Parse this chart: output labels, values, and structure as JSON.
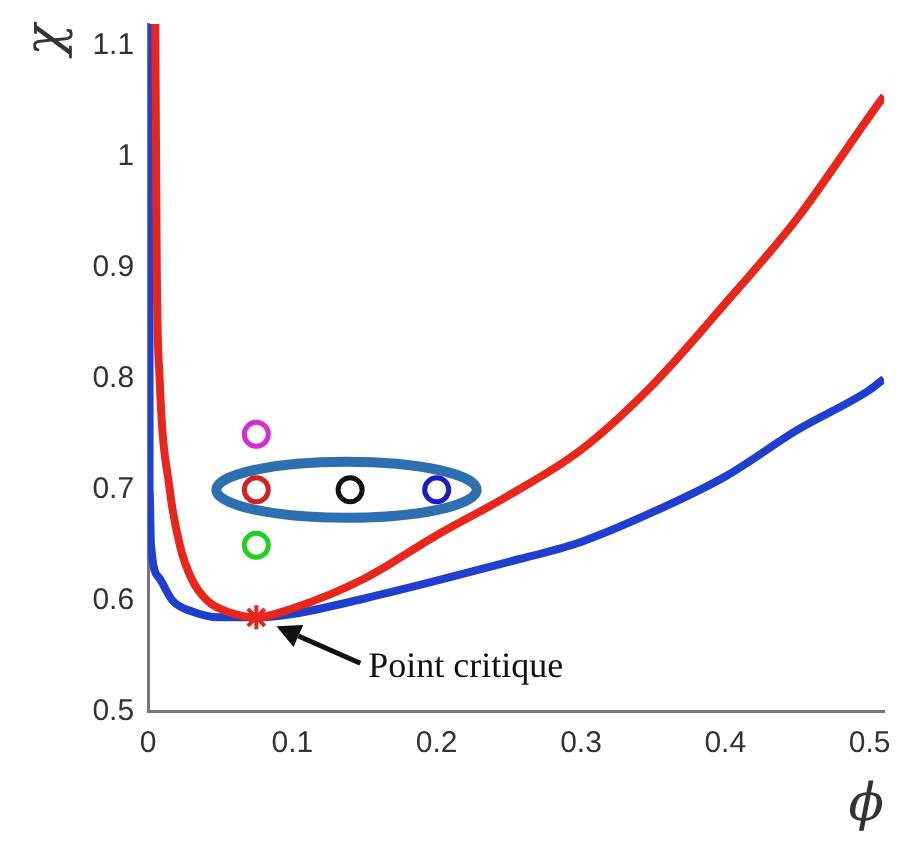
{
  "chart_data": {
    "type": "line",
    "xlabel": "ϕ",
    "ylabel": "χ",
    "xlim": [
      0,
      0.51
    ],
    "ylim": [
      0.5,
      1.12
    ],
    "xticks": [
      0,
      0.1,
      0.2,
      0.3,
      0.4,
      0.5
    ],
    "yticks": [
      0.5,
      0.6,
      0.7,
      0.8,
      0.9,
      1,
      1.1
    ],
    "grid": false,
    "legend": false,
    "series": [
      {
        "color": "#e8261c",
        "marker": "none",
        "x": [
          0.005,
          0.006,
          0.008,
          0.015,
          0.022,
          0.03,
          0.041,
          0.055,
          0.075,
          0.1,
          0.15,
          0.2,
          0.25,
          0.3,
          0.35,
          0.4,
          0.45,
          0.5,
          0.51
        ],
        "values": [
          1.12,
          0.9,
          0.8,
          0.7,
          0.65,
          0.62,
          0.6,
          0.59,
          0.585,
          0.593,
          0.62,
          0.659,
          0.695,
          0.736,
          0.795,
          0.868,
          0.945,
          1.037,
          1.055
        ]
      },
      {
        "color": "#1f3fcf",
        "marker": "none",
        "x": [
          0.001,
          0.001,
          0.001,
          0.002,
          0.008,
          0.017,
          0.031,
          0.049,
          0.075,
          0.1,
          0.15,
          0.2,
          0.25,
          0.3,
          0.35,
          0.4,
          0.45,
          0.5,
          0.51
        ],
        "values": [
          1.12,
          0.9,
          0.7,
          0.65,
          0.62,
          0.6,
          0.59,
          0.585,
          0.585,
          0.588,
          0.602,
          0.618,
          0.635,
          0.653,
          0.68,
          0.712,
          0.754,
          0.79,
          0.8
        ]
      },
      {
        "type": "scatter",
        "marker": "circle",
        "x": [
          0.075,
          0.075,
          0.075,
          0.14,
          0.2
        ],
        "values": [
          0.75,
          0.7,
          0.65,
          0.7,
          0.7
        ],
        "colors": [
          "#d62ad6",
          "#d42020",
          "#22d022",
          "#111111",
          "#1a1ac8"
        ]
      },
      {
        "type": "scatter",
        "marker": "cross",
        "color": "#e8261c",
        "x": [
          0.075
        ],
        "values": [
          0.585
        ]
      }
    ],
    "annotations": [
      "Point critique"
    ]
  }
}
